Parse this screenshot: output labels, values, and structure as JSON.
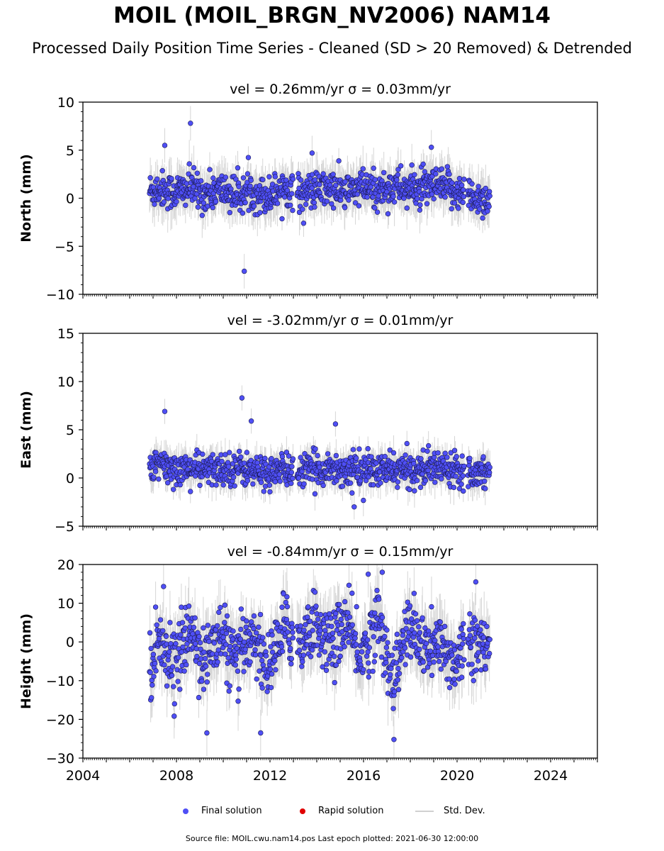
{
  "title": "MOIL (MOIL_BRGN_NV2006) NAM14",
  "subtitle": "Processed Daily Position Time Series - Cleaned (SD > 20 Removed) & Detrended",
  "footer": "Source file: MOIL.cwu.nam14.pos  Last epoch plotted: 2021-06-30 12:00:00",
  "legend": {
    "final": "Final solution",
    "rapid": "Rapid solution",
    "std": "Std. Dev."
  },
  "colors": {
    "final": "#4f4ff5",
    "rapid": "#e00000",
    "std": "#c8c8c8",
    "edge": "#1a1a55"
  },
  "chart_data": [
    {
      "type": "scatter",
      "title": "vel = 0.26mm/yr   σ = 0.03mm/yr",
      "ylabel": "North (mm)",
      "xlim": [
        2004,
        2026
      ],
      "ylim": [
        -10,
        10
      ],
      "yticks": [
        -10,
        -5,
        0,
        5,
        10
      ],
      "ytick_labels": [
        "−10",
        "−5",
        "0",
        "5",
        "10"
      ],
      "x": [
        2006.9,
        2007.3,
        2007.9,
        2008.6,
        2009.2,
        2009.9,
        2010.6,
        2011.2,
        2011.9,
        2012.6,
        2013.3,
        2013.9,
        2014.6,
        2015.2,
        2015.9,
        2016.6,
        2017.3,
        2017.9,
        2018.6,
        2019.2,
        2019.9,
        2020.6,
        2021.2
      ],
      "y": [
        0.8,
        1.0,
        0.6,
        1.1,
        0.4,
        0.9,
        0.3,
        0.7,
        0.2,
        1.2,
        0.5,
        0.8,
        1.0,
        0.6,
        1.1,
        0.7,
        1.3,
        0.9,
        1.0,
        1.2,
        0.8,
        0.2,
        -0.1
      ],
      "series": [
        {
          "name": "Final solution"
        }
      ],
      "outliers": [
        [
          2008.6,
          7.8
        ],
        [
          2010.9,
          -7.6
        ],
        [
          2007.5,
          5.5
        ],
        [
          2013.8,
          4.7
        ],
        [
          2018.9,
          5.3
        ]
      ]
    },
    {
      "type": "scatter",
      "title": "vel = -3.02mm/yr   σ = 0.01mm/yr",
      "ylabel": "East (mm)",
      "xlim": [
        2004,
        2026
      ],
      "ylim": [
        -5,
        15
      ],
      "yticks": [
        -5,
        0,
        5,
        10,
        15
      ],
      "ytick_labels": [
        "−5",
        "0",
        "5",
        "10",
        "15"
      ],
      "x": [
        2006.9,
        2007.3,
        2007.9,
        2008.6,
        2009.2,
        2009.9,
        2010.6,
        2011.2,
        2011.9,
        2012.6,
        2013.3,
        2013.9,
        2014.6,
        2015.2,
        2015.9,
        2016.6,
        2017.3,
        2017.9,
        2018.6,
        2019.2,
        2019.9,
        2020.6,
        2021.2
      ],
      "y": [
        1.0,
        1.3,
        0.9,
        1.0,
        0.8,
        0.9,
        1.1,
        0.7,
        0.6,
        0.8,
        0.7,
        0.9,
        1.0,
        0.8,
        0.9,
        0.7,
        0.9,
        0.8,
        1.0,
        1.1,
        1.2,
        0.6,
        0.8
      ],
      "series": [
        {
          "name": "Final solution"
        }
      ],
      "outliers": [
        [
          2007.5,
          6.9
        ],
        [
          2010.8,
          8.3
        ],
        [
          2011.2,
          5.9
        ],
        [
          2014.8,
          5.6
        ],
        [
          2015.6,
          -3.0
        ]
      ]
    },
    {
      "type": "scatter",
      "title": "vel = -0.84mm/yr   σ = 0.15mm/yr",
      "ylabel": "Height (mm)",
      "xlabel": "",
      "xlim": [
        2004,
        2026
      ],
      "ylim": [
        -30,
        20
      ],
      "yticks": [
        -30,
        -20,
        -10,
        0,
        10,
        20
      ],
      "ytick_labels": [
        "−30",
        "−20",
        "−10",
        "0",
        "10",
        "20"
      ],
      "xticks": [
        2004,
        2008,
        2012,
        2016,
        2020,
        2024
      ],
      "xtick_labels": [
        "2004",
        "2008",
        "2012",
        "2016",
        "2020",
        "2024"
      ],
      "x": [
        2006.9,
        2007.3,
        2007.9,
        2008.6,
        2009.2,
        2009.9,
        2010.6,
        2011.2,
        2011.9,
        2012.6,
        2013.3,
        2013.9,
        2014.6,
        2015.2,
        2015.9,
        2016.6,
        2017.3,
        2017.9,
        2018.6,
        2019.2,
        2019.9,
        2020.6,
        2021.2
      ],
      "y": [
        -6,
        2,
        -6,
        3,
        -5,
        2,
        -6,
        3,
        -7,
        4,
        0,
        5,
        -1,
        5,
        -4,
        6,
        -10,
        4,
        -2,
        -1,
        -5,
        2,
        -3
      ],
      "series": [
        {
          "name": "Final solution"
        }
      ],
      "outliers": [
        [
          2009.3,
          -23.5
        ],
        [
          2011.6,
          -23.5
        ],
        [
          2016.2,
          17.5
        ],
        [
          2016.8,
          18.0
        ],
        [
          2017.3,
          -25.2
        ],
        [
          2020.8,
          15.5
        ]
      ]
    }
  ]
}
